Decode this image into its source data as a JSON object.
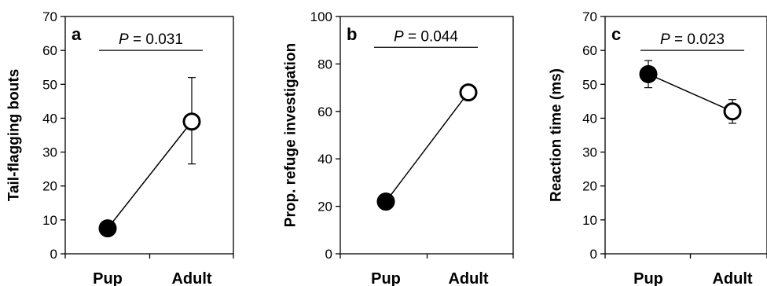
{
  "chart_data": [
    {
      "type": "scatter",
      "panel": "a",
      "ylabel": "Tail-flagging bouts",
      "ylim": [
        0,
        70
      ],
      "yticks": [
        "0",
        "10",
        "20",
        "30",
        "40",
        "50",
        "60",
        "70"
      ],
      "categories": [
        "Pup",
        "Adult"
      ],
      "values": [
        7.5,
        39
      ],
      "error_low": [
        7.5,
        26.5
      ],
      "error_high": [
        7.5,
        52
      ],
      "marker_fill": [
        "#000000",
        "#ffffff"
      ],
      "annotation": {
        "italic": "P",
        "rest": " = 0.031",
        "y": 60
      }
    },
    {
      "type": "scatter",
      "panel": "b",
      "ylabel": "Prop. refuge investigation",
      "ylim": [
        0,
        100
      ],
      "yticks": [
        "0",
        "20",
        "40",
        "60",
        "80",
        "100"
      ],
      "categories": [
        "Pup",
        "Adult"
      ],
      "values": [
        22,
        68
      ],
      "error_low": [
        22,
        68
      ],
      "error_high": [
        22,
        68
      ],
      "marker_fill": [
        "#000000",
        "#ffffff"
      ],
      "annotation": {
        "italic": "P",
        "rest": " = 0.044",
        "y": 87
      }
    },
    {
      "type": "scatter",
      "panel": "c",
      "ylabel": "Reaction time (ms)",
      "ylim": [
        0,
        70
      ],
      "yticks": [
        "0",
        "10",
        "20",
        "30",
        "40",
        "50",
        "60",
        "70"
      ],
      "categories": [
        "Pup",
        "Adult"
      ],
      "values": [
        53,
        42
      ],
      "error_low": [
        49,
        38.5
      ],
      "error_high": [
        57,
        45.5
      ],
      "marker_fill": [
        "#000000",
        "#ffffff"
      ],
      "annotation": {
        "italic": "P",
        "rest": " = 0.023",
        "y": 60
      }
    }
  ]
}
